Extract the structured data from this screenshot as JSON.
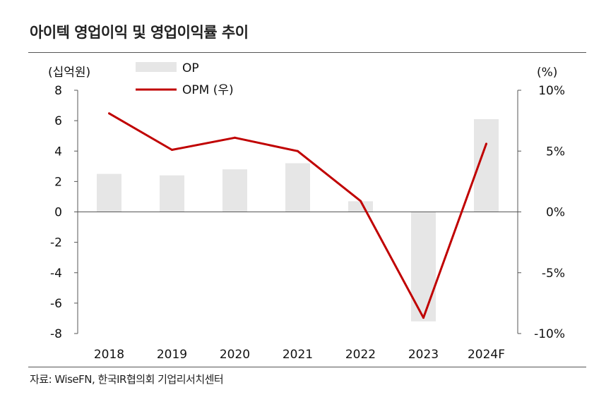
{
  "title": "아이텍 영업이익 및 영업이익률 추이",
  "source": "자료: WiseFN, 한국IR협의회 기업리서치센터",
  "chart_data": {
    "type": "bar",
    "categories": [
      "2018",
      "2019",
      "2020",
      "2021",
      "2022",
      "2023",
      "2024F"
    ],
    "series": [
      {
        "name": "OP",
        "type": "bar",
        "axis": "left",
        "color": "#e6e6e6",
        "values": [
          2.5,
          2.4,
          2.8,
          3.2,
          0.7,
          -7.2,
          6.1
        ]
      },
      {
        "name": "OPM (우)",
        "type": "line",
        "axis": "right",
        "color": "#c00000",
        "values": [
          8.1,
          5.1,
          6.1,
          5.0,
          0.9,
          -8.7,
          5.6
        ]
      }
    ],
    "left_axis": {
      "label": "(십억원)",
      "min": -8,
      "max": 8,
      "ticks": [
        "8",
        "6",
        "4",
        "2",
        "0",
        "-2",
        "-4",
        "-6",
        "-8"
      ]
    },
    "right_axis": {
      "label": "(%)",
      "min": -10,
      "max": 10,
      "ticks": [
        "10%",
        "5%",
        "0%",
        "-5%",
        "-10%"
      ]
    },
    "legend": "top-center",
    "grid": false
  }
}
